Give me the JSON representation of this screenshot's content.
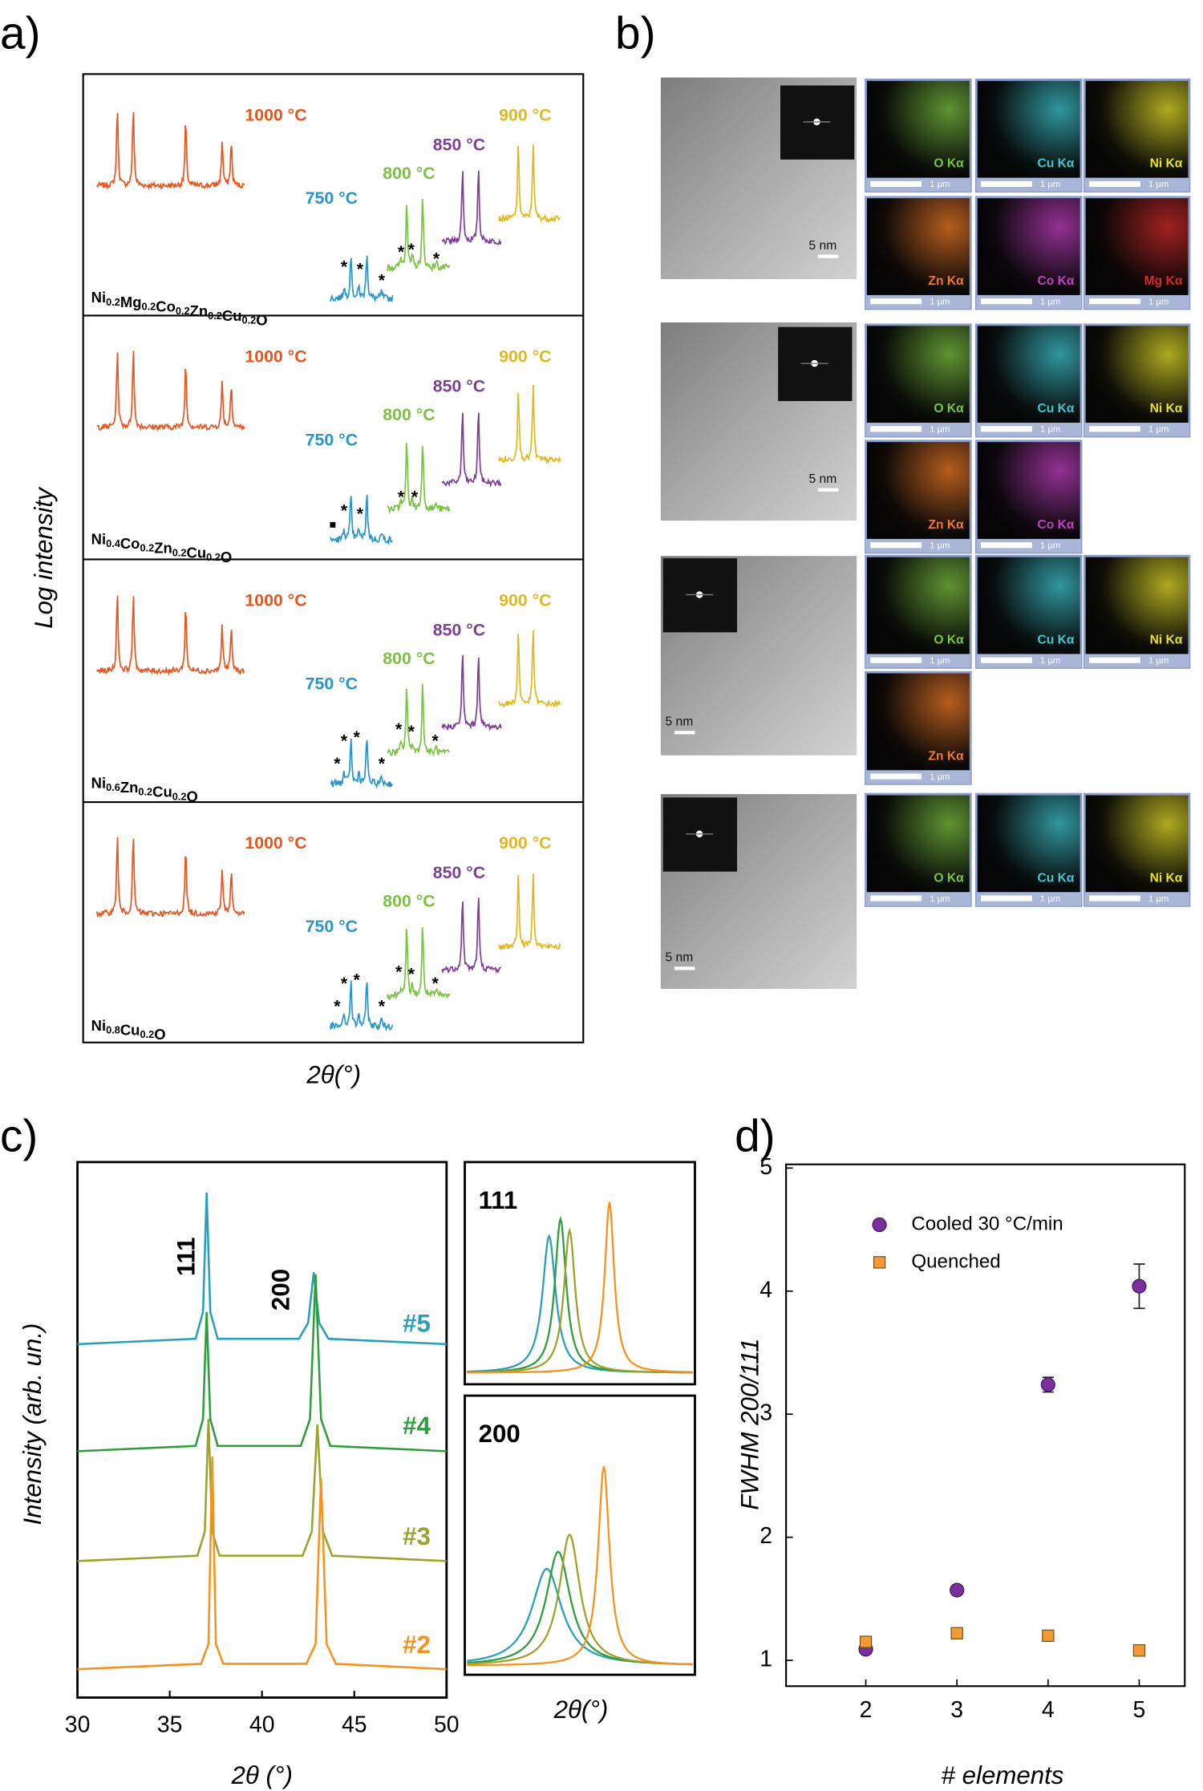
{
  "panel_a": {
    "label": "a)",
    "y_label": "Log intensity",
    "x_label": "2θ(°)",
    "temperatures": [
      "1000 °C",
      "750 °C",
      "800 °C",
      "850 °C",
      "900 °C"
    ],
    "temperature_colors": [
      "#e8561f",
      "#2b95c9",
      "#7cc242",
      "#7f3f98",
      "#e3b81f"
    ],
    "marker": "*",
    "square_marker": "■",
    "subpanels": [
      {
        "composition": "Ni0.2Mg0.2Co0.2Zn0.2Cu0.2O"
      },
      {
        "composition": "Ni0.4Co0.2Zn0.2Cu0.2O"
      },
      {
        "composition": "Ni0.6Zn0.2Cu0.2O"
      },
      {
        "composition": "Ni0.8Cu0.2O"
      }
    ]
  },
  "panel_b": {
    "label": "b)",
    "tem_scale": "5 nm",
    "map_scale": "1 µm",
    "rows": [
      {
        "maps": [
          {
            "label": "O Kα",
            "color": "#7cc242"
          },
          {
            "label": "Cu Kα",
            "color": "#3fc6d0"
          },
          {
            "label": "Ni Kα",
            "color": "#e6e02a"
          },
          {
            "label": "Zn Kα",
            "color": "#f07a28"
          },
          {
            "label": "Co Kα",
            "color": "#c23fc2"
          },
          {
            "label": "Mg Kα",
            "color": "#d42a2a"
          }
        ]
      },
      {
        "maps": [
          {
            "label": "O Kα",
            "color": "#7cc242"
          },
          {
            "label": "Cu Kα",
            "color": "#3fc6d0"
          },
          {
            "label": "Ni Kα",
            "color": "#e6e02a"
          },
          {
            "label": "Zn Kα",
            "color": "#f07a28"
          },
          {
            "label": "Co Kα",
            "color": "#c23fc2"
          }
        ]
      },
      {
        "maps": [
          {
            "label": "O Kα",
            "color": "#7cc242"
          },
          {
            "label": "Cu Kα",
            "color": "#3fc6d0"
          },
          {
            "label": "Ni Kα",
            "color": "#e6e02a"
          },
          {
            "label": "Zn Kα",
            "color": "#f07a28"
          }
        ]
      },
      {
        "maps": [
          {
            "label": "O Kα",
            "color": "#7cc242"
          },
          {
            "label": "Cu Kα",
            "color": "#3fc6d0"
          },
          {
            "label": "Ni Kα",
            "color": "#e6e02a"
          }
        ]
      }
    ]
  },
  "chart_data": [
    {
      "type": "line",
      "panel_label": "c)",
      "x_label": "2θ (°)",
      "y_label": "Intensity (arb. un.)",
      "annotations": [
        "111",
        "200"
      ],
      "inset_labels": [
        "111",
        "200"
      ],
      "inset_x_label": "2θ(°)",
      "xlim": [
        30,
        50
      ],
      "xticks": [
        30,
        35,
        40,
        45,
        50
      ],
      "ylim": [
        0,
        100
      ],
      "series": [
        {
          "name": "#5",
          "color": "#2a9fbc",
          "x": [
            30,
            36.4,
            36.8,
            37.0,
            37.2,
            37.6,
            42.0,
            42.5,
            42.8,
            43.1,
            43.6,
            50
          ],
          "values": [
            66,
            67,
            72,
            94.3,
            72,
            67,
            67,
            70,
            79.4,
            70,
            67,
            66
          ]
        },
        {
          "name": "#4",
          "color": "#2e9e3c",
          "x": [
            30,
            36.4,
            36.8,
            37.0,
            37.2,
            37.6,
            42.1,
            42.6,
            42.9,
            43.2,
            43.7,
            50
          ],
          "values": [
            46,
            47,
            52,
            72,
            52,
            47,
            47,
            52,
            79,
            52,
            47,
            46
          ]
        },
        {
          "name": "#3",
          "color": "#9aa32c",
          "x": [
            30,
            36.5,
            36.9,
            37.1,
            37.3,
            37.7,
            42.2,
            42.7,
            43.0,
            43.3,
            43.8,
            50
          ],
          "values": [
            25.5,
            26.5,
            31,
            52,
            31,
            26.5,
            26.5,
            31,
            51,
            31,
            26.5,
            25.5
          ]
        },
        {
          "name": "#2",
          "color": "#f6921e",
          "x": [
            30,
            36.7,
            37.1,
            37.3,
            37.5,
            37.9,
            42.4,
            42.9,
            43.2,
            43.5,
            44.0,
            50
          ],
          "values": [
            5.3,
            6.3,
            10,
            45,
            10,
            6.3,
            6.3,
            10,
            41,
            10,
            6.3,
            5.3
          ]
        }
      ]
    },
    {
      "type": "scatter",
      "panel_label": "d)",
      "x_label": "# elements",
      "y_label": "FWHM 200/111",
      "xlim": [
        1.125,
        5.5
      ],
      "xticks": [
        2,
        3,
        4,
        5
      ],
      "ylim": [
        0.79,
        5.03
      ],
      "yticks": [
        1,
        2,
        3,
        4,
        5
      ],
      "legend": "upper left",
      "series": [
        {
          "name": "Cooled 30 °C/min",
          "color": "#7b2f9e",
          "marker": "circle",
          "x": [
            2,
            3,
            4,
            5
          ],
          "values": [
            1.09,
            1.57,
            3.24,
            4.04
          ],
          "errors": [
            0.03,
            0.03,
            0.06,
            0.18
          ]
        },
        {
          "name": "Quenched",
          "color": "#f39a34",
          "marker": "square",
          "x": [
            2,
            3,
            4,
            5
          ],
          "values": [
            1.15,
            1.22,
            1.2,
            1.08
          ],
          "errors": [
            0.03,
            0.03,
            0.03,
            0.03
          ]
        }
      ]
    }
  ]
}
